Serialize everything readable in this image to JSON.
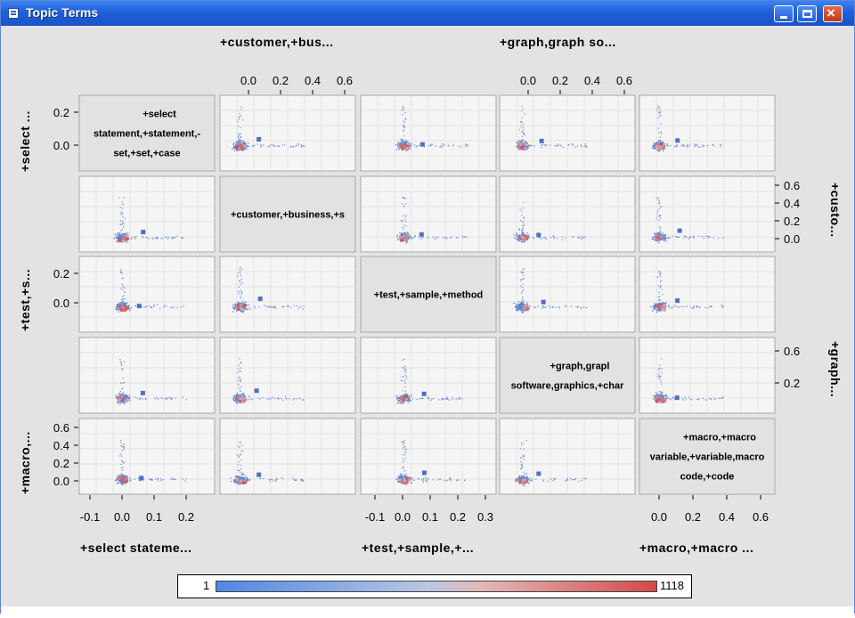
{
  "window": {
    "title": "Topic Terms"
  },
  "legend": {
    "min_label": "1",
    "max_label": "1118",
    "colors": [
      "#4f87e4",
      "#c9c9d6",
      "#d24a4a"
    ]
  },
  "top_labels": [
    "+customer,+bus...",
    "+graph,graph so..."
  ],
  "bottom_labels": [
    "+select stateme...",
    "+test,+sample,+...",
    "+macro,+macro ..."
  ],
  "left_labels": [
    "+select ...",
    "+test,+s...",
    "+macro,..."
  ],
  "right_labels": [
    "+custo...",
    "+graph..."
  ],
  "diagonal": [
    [
      "+select",
      "statement,+statement,-",
      "set,+set,+case"
    ],
    [
      "+customer,+business,+s"
    ],
    [
      "+test,+sample,+method"
    ],
    [
      "+graph,grapl",
      "software,graphics,+char"
    ],
    [
      "+macro,+macro",
      "variable,+variable,macro",
      "code,+code"
    ]
  ],
  "axes": {
    "top_col2": [
      "0.0",
      "0.2",
      "0.4",
      "0.6"
    ],
    "top_col4": [
      "0.0",
      "0.2",
      "0.4",
      "0.6"
    ],
    "bottom_col1": [
      "-0.1",
      "0.0",
      "0.1",
      "0.2"
    ],
    "bottom_col3": [
      "-0.1",
      "0.0",
      "0.1",
      "0.2",
      "0.3"
    ],
    "bottom_col5": [
      "0.0",
      "0.2",
      "0.4",
      "0.6"
    ],
    "left_row1": [
      "0.2",
      "0.0"
    ],
    "left_row3": [
      "0.2",
      "0.0"
    ],
    "left_row5": [
      "0.6",
      "0.4",
      "0.2",
      "0.0"
    ],
    "right_row2": [
      "0.6",
      "0.4",
      "0.2",
      "0.0"
    ],
    "right_row4": [
      "0.6",
      "0.2"
    ]
  }
}
